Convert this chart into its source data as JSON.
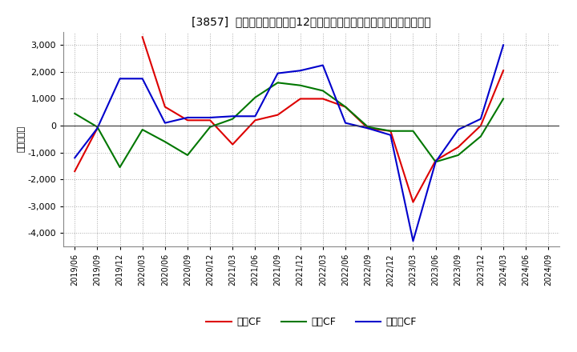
{
  "title": "[3857]  キャッシュフローの12か月移動合計の対前年同期増減額の推移",
  "ylabel": "（百万円）",
  "background_color": "#ffffff",
  "plot_bg_color": "#ffffff",
  "grid_color": "#aaaaaa",
  "x_labels": [
    "2019/06",
    "2019/09",
    "2019/12",
    "2020/03",
    "2020/06",
    "2020/09",
    "2020/12",
    "2021/03",
    "2021/06",
    "2021/09",
    "2021/12",
    "2022/03",
    "2022/06",
    "2022/09",
    "2022/12",
    "2023/03",
    "2023/06",
    "2023/09",
    "2023/12",
    "2024/03",
    "2024/06",
    "2024/09"
  ],
  "operating_cf": [
    -1700,
    -100,
    null,
    3300,
    700,
    200,
    200,
    -700,
    200,
    400,
    1000,
    1000,
    700,
    -100,
    -200,
    -2850,
    -1300,
    -800,
    0,
    2050,
    null,
    null
  ],
  "investing_cf": [
    450,
    -50,
    -1550,
    -150,
    -600,
    -1100,
    -50,
    250,
    1050,
    1600,
    1500,
    1300,
    700,
    -50,
    -200,
    -200,
    -1350,
    -1100,
    -400,
    1000,
    null,
    null
  ],
  "free_cf": [
    -1200,
    -100,
    1750,
    1750,
    100,
    300,
    300,
    350,
    350,
    1950,
    2050,
    2250,
    100,
    -100,
    -350,
    -4300,
    -1350,
    -150,
    250,
    3000,
    null,
    null
  ],
  "operating_color": "#dd0000",
  "investing_color": "#007700",
  "free_color": "#0000cc",
  "ylim": [
    -4500,
    3500
  ],
  "yticks": [
    -4000,
    -3000,
    -2000,
    -1000,
    0,
    1000,
    2000,
    3000
  ],
  "legend_labels": [
    "営業CF",
    "投資CF",
    "フリーCF"
  ]
}
